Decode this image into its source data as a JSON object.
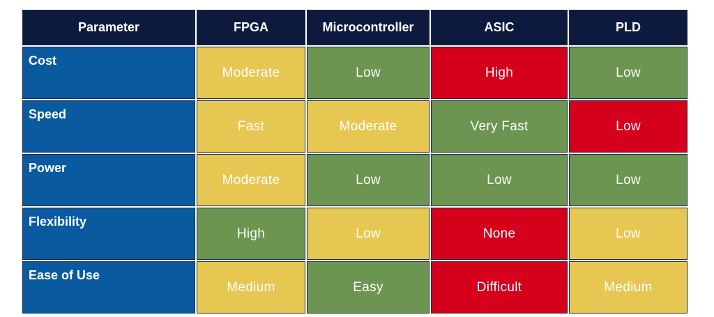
{
  "table": {
    "headers": [
      "Parameter",
      "FPGA",
      "Microcontroller",
      "ASIC",
      "PLD"
    ],
    "rows": [
      {
        "parameter": "Cost",
        "cells": [
          {
            "value": "Moderate",
            "color": "#e6c752"
          },
          {
            "value": "Low",
            "color": "#6b9550"
          },
          {
            "value": "High",
            "color": "#d4001c"
          },
          {
            "value": "Low",
            "color": "#6b9550"
          }
        ]
      },
      {
        "parameter": "Speed",
        "cells": [
          {
            "value": "Fast",
            "color": "#e6c752"
          },
          {
            "value": "Moderate",
            "color": "#e6c752"
          },
          {
            "value": "Very Fast",
            "color": "#6b9550"
          },
          {
            "value": "Low",
            "color": "#d4001c"
          }
        ]
      },
      {
        "parameter": "Power",
        "cells": [
          {
            "value": "Moderate",
            "color": "#e6c752"
          },
          {
            "value": "Low",
            "color": "#6b9550"
          },
          {
            "value": "Low",
            "color": "#6b9550"
          },
          {
            "value": "Low",
            "color": "#6b9550"
          }
        ]
      },
      {
        "parameter": "Flexibility",
        "cells": [
          {
            "value": "High",
            "color": "#6b9550"
          },
          {
            "value": "Low",
            "color": "#e6c752"
          },
          {
            "value": "None",
            "color": "#d4001c"
          },
          {
            "value": "Low",
            "color": "#e6c752"
          }
        ]
      },
      {
        "parameter": "Ease of Use",
        "cells": [
          {
            "value": "Medium",
            "color": "#e6c752"
          },
          {
            "value": "Easy",
            "color": "#6b9550"
          },
          {
            "value": "Difficult",
            "color": "#d4001c"
          },
          {
            "value": "Medium",
            "color": "#e6c752"
          }
        ]
      }
    ]
  },
  "colors": {
    "header_bg": "#0b1a3d",
    "parameter_bg": "#0a5aa0",
    "yellow": "#e6c752",
    "green": "#6b9550",
    "red": "#d4001c"
  }
}
